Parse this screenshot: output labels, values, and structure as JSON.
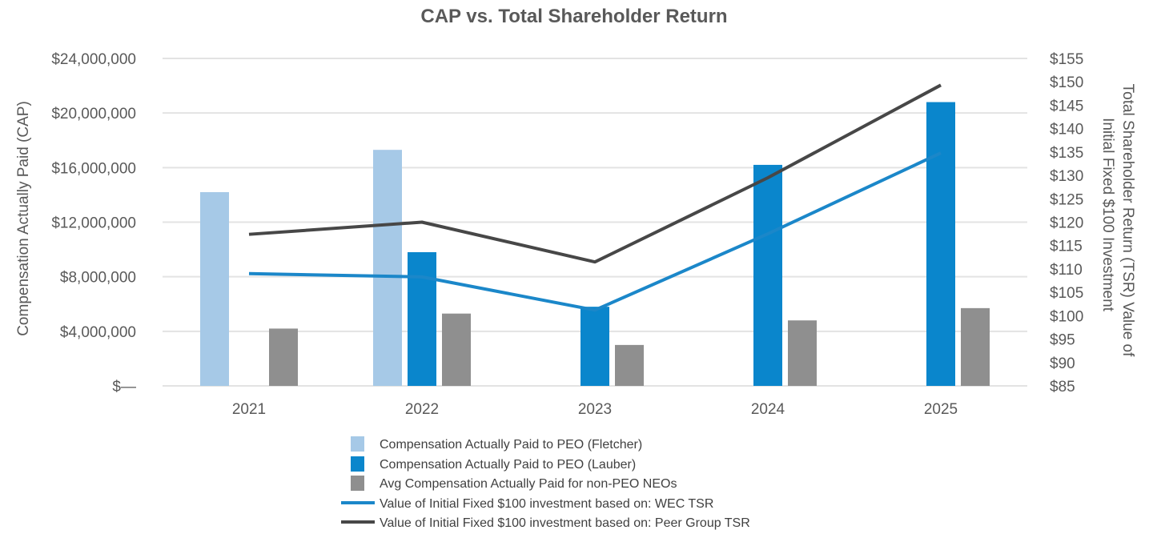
{
  "chart_data": {
    "type": "bar",
    "title": "CAP vs. Total Shareholder Return",
    "categories": [
      "2021",
      "2022",
      "2023",
      "2024",
      "2025"
    ],
    "ylabel_left": "Compensation Actually Paid (CAP)",
    "ylabel_right_line1": "Total Shareholder Return (TSR) Value of",
    "ylabel_right_line2": "Initial Fixed $100 Investment",
    "ylim_left": [
      0,
      24000000
    ],
    "ylim_right": [
      85,
      155
    ],
    "left_ticks": [
      {
        "value": 0,
        "label": "$—"
      },
      {
        "value": 4000000,
        "label": "$4,000,000"
      },
      {
        "value": 8000000,
        "label": "$8,000,000"
      },
      {
        "value": 12000000,
        "label": "$12,000,000"
      },
      {
        "value": 16000000,
        "label": "$16,000,000"
      },
      {
        "value": 20000000,
        "label": "$20,000,000"
      },
      {
        "value": 24000000,
        "label": "$24,000,000"
      }
    ],
    "right_ticks": [
      {
        "value": 85,
        "label": "$85"
      },
      {
        "value": 90,
        "label": "$90"
      },
      {
        "value": 95,
        "label": "$95"
      },
      {
        "value": 100,
        "label": "$100"
      },
      {
        "value": 105,
        "label": "$105"
      },
      {
        "value": 110,
        "label": "$110"
      },
      {
        "value": 115,
        "label": "$115"
      },
      {
        "value": 120,
        "label": "$120"
      },
      {
        "value": 125,
        "label": "$125"
      },
      {
        "value": 130,
        "label": "$130"
      },
      {
        "value": 135,
        "label": "$135"
      },
      {
        "value": 140,
        "label": "$140"
      },
      {
        "value": 145,
        "label": "$145"
      },
      {
        "value": 150,
        "label": "$150"
      },
      {
        "value": 155,
        "label": "$155"
      }
    ],
    "bar_series": [
      {
        "name": "Compensation Actually Paid to PEO (Fletcher)",
        "color": "#a6c9e7",
        "values": [
          14200000,
          17300000,
          null,
          null,
          null
        ]
      },
      {
        "name": "Compensation Actually Paid to PEO (Lauber)",
        "color": "#0a86cc",
        "values": [
          null,
          9800000,
          5800000,
          16200000,
          20800000
        ]
      },
      {
        "name": "Avg Compensation Actually Paid for non-PEO NEOs",
        "color": "#8f8f8f",
        "values": [
          4200000,
          5300000,
          3000000,
          4800000,
          5700000
        ]
      }
    ],
    "line_series": [
      {
        "name": "Value of Initial Fixed $100 investment based on: WEC TSR",
        "color": "#1b87c9",
        "values": [
          109,
          108.3,
          101.2,
          117.5,
          134.8
        ]
      },
      {
        "name": "Value of Initial Fixed $100 investment based on: Peer Group TSR",
        "color": "#474747",
        "values": [
          117.4,
          120,
          111.5,
          129.5,
          149.3
        ]
      }
    ],
    "legend_position": "bottom"
  }
}
